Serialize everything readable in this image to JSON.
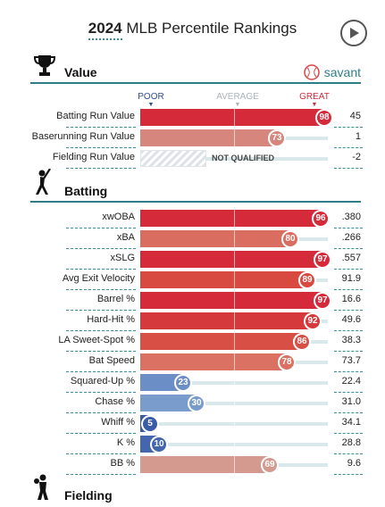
{
  "header": {
    "year": "2024",
    "title": "MLB Percentile Rankings"
  },
  "scale": {
    "poor": "POOR",
    "average": "AVERAGE",
    "great": "GREAT"
  },
  "sections": {
    "value": {
      "label": "Value",
      "brand": "savant"
    },
    "batting": {
      "label": "Batting"
    },
    "fielding": {
      "label": "Fielding"
    }
  },
  "value_rows": [
    {
      "label": "Batting Run Value",
      "percentile": 98,
      "value": "45",
      "color": "#d42a3a"
    },
    {
      "label": "Baserunning Run Value",
      "percentile": 73,
      "value": "1",
      "color": "#d6867c"
    },
    {
      "label": "Fielding Run Value",
      "qualified": false,
      "status": "NOT QUALIFIED",
      "value": "-2"
    }
  ],
  "batting_rows": [
    {
      "label": "xwOBA",
      "percentile": 96,
      "value": ".380",
      "color": "#d42a3a"
    },
    {
      "label": "xBA",
      "percentile": 80,
      "value": ".266",
      "color": "#d96d5f"
    },
    {
      "label": "xSLG",
      "percentile": 97,
      "value": ".557",
      "color": "#d42a3a"
    },
    {
      "label": "Avg Exit Velocity",
      "percentile": 89,
      "value": "91.9",
      "color": "#d84940"
    },
    {
      "label": "Barrel %",
      "percentile": 97,
      "value": "16.6",
      "color": "#d42a3a"
    },
    {
      "label": "Hard-Hit %",
      "percentile": 92,
      "value": "49.6",
      "color": "#d6393b"
    },
    {
      "label": "LA Sweet-Spot %",
      "percentile": 86,
      "value": "38.3",
      "color": "#d84f45"
    },
    {
      "label": "Bat Speed",
      "percentile": 78,
      "value": "73.7",
      "color": "#da7163"
    },
    {
      "label": "Squared-Up %",
      "percentile": 23,
      "value": "22.4",
      "color": "#6b8ec7"
    },
    {
      "label": "Chase %",
      "percentile": 30,
      "value": "31.0",
      "color": "#7a9ccd"
    },
    {
      "label": "Whiff %",
      "percentile": 5,
      "value": "34.1",
      "color": "#3a5ba8"
    },
    {
      "label": "K %",
      "percentile": 10,
      "value": "28.8",
      "color": "#4366ad"
    },
    {
      "label": "BB %",
      "percentile": 69,
      "value": "9.6",
      "color": "#d49a90"
    }
  ]
}
